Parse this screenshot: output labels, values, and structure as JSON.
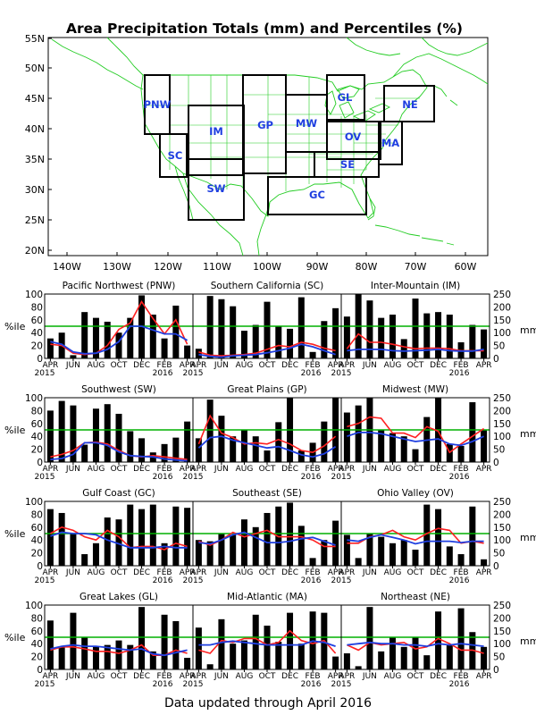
{
  "title": "Area Precipitation Totals (mm) and Percentiles (%)",
  "footer": "Data updated through April 2016",
  "colors": {
    "bars": "#000000",
    "percentile_line": "#ff2020",
    "mm_line": "#1f3fe0",
    "threshold_line": "#00b000",
    "map_lines": "#22cc22",
    "region_labels": "#1f3fe0"
  },
  "map": {
    "lat_labels": [
      "55N",
      "50N",
      "45N",
      "40N",
      "35N",
      "30N",
      "25N",
      "20N"
    ],
    "lon_labels": [
      "140W",
      "130W",
      "120W",
      "110W",
      "100W",
      "90W",
      "80W",
      "70W",
      "60W"
    ],
    "region_labels": [
      "PNW",
      "SC",
      "IM",
      "SW",
      "GP",
      "MW",
      "GC",
      "GL",
      "OV",
      "SE",
      "MA",
      "NE"
    ]
  },
  "axes": {
    "percentile_label": "%ile",
    "mm_label": "mm",
    "percentile_ticks": [
      "0",
      "20",
      "40",
      "60",
      "80",
      "100"
    ],
    "mm_ticks": [
      "0",
      "50",
      "100",
      "150",
      "200",
      "250"
    ],
    "month_ticks": [
      "APR",
      "JUN",
      "AUG",
      "OCT",
      "DEC",
      "FEB",
      "APR"
    ],
    "year_left": "2015",
    "year_right": "2016"
  },
  "chart_data": {
    "type": "bar",
    "x": [
      "2015-04",
      "2015-05",
      "2015-06",
      "2015-07",
      "2015-08",
      "2015-09",
      "2015-10",
      "2015-11",
      "2015-12",
      "2016-01",
      "2016-02",
      "2016-03",
      "2016-04"
    ],
    "y_left_range": [
      0,
      100
    ],
    "y_right_range": [
      0,
      250
    ],
    "threshold_percentile": 50,
    "series_meaning": "bars = monthly percentile (%ile), red line = 3-month percentile, blue line = monthly total (mm)",
    "panels": [
      {
        "title": "Pacific Northwest (PNW)",
        "percentile": [
          31,
          40,
          5,
          72,
          63,
          57,
          40,
          63,
          98,
          68,
          31,
          82,
          20
        ],
        "pct3": [
          22,
          20,
          8,
          6,
          8,
          20,
          45,
          55,
          88,
          62,
          38,
          60,
          22
        ],
        "mm": [
          65,
          55,
          25,
          18,
          20,
          35,
          65,
          125,
          125,
          110,
          95,
          95,
          70
        ]
      },
      {
        "title": "Southern California (SC)",
        "percentile": [
          15,
          97,
          92,
          81,
          43,
          52,
          88,
          50,
          46,
          95,
          10,
          58,
          78
        ],
        "pct3": [
          10,
          5,
          4,
          5,
          6,
          8,
          14,
          20,
          18,
          25,
          22,
          16,
          12
        ],
        "mm": [
          15,
          8,
          5,
          10,
          12,
          15,
          22,
          30,
          40,
          55,
          45,
          30,
          15
        ]
      },
      {
        "title": "Inter-Mountain (IM)",
        "percentile": [
          65,
          100,
          90,
          63,
          68,
          30,
          93,
          70,
          72,
          68,
          25,
          52,
          45
        ],
        "pct3": [
          15,
          38,
          25,
          25,
          22,
          18,
          15,
          16,
          16,
          15,
          12,
          12,
          12
        ],
        "mm": [
          30,
          35,
          35,
          35,
          30,
          28,
          30,
          32,
          35,
          30,
          28,
          28,
          35
        ]
      },
      {
        "title": "Southwest (SW)",
        "percentile": [
          80,
          95,
          88,
          27,
          83,
          90,
          75,
          48,
          37,
          15,
          28,
          38,
          63
        ],
        "pct3": [
          8,
          12,
          18,
          30,
          31,
          28,
          18,
          10,
          8,
          10,
          8,
          6,
          4
        ],
        "mm": [
          10,
          14,
          30,
          75,
          75,
          65,
          40,
          25,
          22,
          20,
          12,
          8,
          5
        ]
      },
      {
        "title": "Great Plains (GP)",
        "percentile": [
          37,
          97,
          72,
          40,
          50,
          40,
          18,
          62,
          100,
          18,
          30,
          63,
          100
        ],
        "pct3": [
          28,
          72,
          45,
          38,
          28,
          30,
          28,
          35,
          28,
          18,
          15,
          25,
          40
        ],
        "mm": [
          55,
          95,
          100,
          85,
          75,
          65,
          55,
          60,
          45,
          28,
          20,
          32,
          60
        ]
      },
      {
        "title": "Midwest (MW)",
        "percentile": [
          77,
          88,
          100,
          50,
          45,
          40,
          20,
          70,
          100,
          28,
          25,
          93,
          50
        ],
        "pct3": [
          55,
          60,
          70,
          68,
          45,
          45,
          38,
          55,
          48,
          15,
          28,
          40,
          52
        ],
        "mm": [
          100,
          115,
          115,
          110,
          100,
          90,
          80,
          85,
          90,
          70,
          65,
          80,
          100
        ]
      },
      {
        "title": "Gulf Coast (GC)",
        "percentile": [
          88,
          82,
          50,
          18,
          35,
          75,
          72,
          95,
          88,
          95,
          35,
          92,
          90
        ],
        "pct3": [
          50,
          60,
          55,
          45,
          40,
          55,
          45,
          28,
          30,
          30,
          25,
          35,
          30
        ],
        "mm": [
          115,
          130,
          125,
          125,
          120,
          100,
          85,
          70,
          70,
          70,
          75,
          70,
          70
        ]
      },
      {
        "title": "Southeast (SE)",
        "percentile": [
          40,
          38,
          50,
          48,
          72,
          60,
          82,
          92,
          98,
          62,
          12,
          40,
          70
        ],
        "pct3": [
          38,
          32,
          40,
          52,
          45,
          50,
          55,
          45,
          45,
          45,
          40,
          30,
          30
        ],
        "mm": [
          90,
          85,
          100,
          120,
          130,
          110,
          90,
          90,
          95,
          105,
          110,
          95,
          80
        ]
      },
      {
        "title": "Ohio Valley (OV)",
        "percentile": [
          48,
          12,
          50,
          45,
          35,
          40,
          25,
          95,
          88,
          30,
          18,
          92,
          10
        ],
        "pct3": [
          35,
          35,
          45,
          48,
          55,
          45,
          40,
          50,
          58,
          55,
          35,
          38,
          35
        ],
        "mm": [
          100,
          95,
          110,
          120,
          110,
          100,
          85,
          95,
          95,
          95,
          90,
          95,
          95
        ]
      },
      {
        "title": "Great Lakes (GL)",
        "percentile": [
          76,
          35,
          88,
          50,
          35,
          38,
          45,
          38,
          97,
          28,
          85,
          75,
          18
        ],
        "pct3": [
          30,
          35,
          35,
          32,
          28,
          28,
          25,
          30,
          38,
          22,
          22,
          30,
          25
        ],
        "mm": [
          80,
          90,
          95,
          90,
          90,
          85,
          80,
          75,
          80,
          60,
          55,
          65,
          75
        ]
      },
      {
        "title": "Mid-Atlantic (MA)",
        "percentile": [
          65,
          8,
          78,
          40,
          45,
          85,
          68,
          43,
          88,
          40,
          90,
          88,
          20
        ],
        "pct3": [
          30,
          25,
          45,
          42,
          48,
          48,
          38,
          42,
          60,
          45,
          40,
          45,
          25
        ],
        "mm": [
          95,
          95,
          105,
          110,
          105,
          100,
          95,
          95,
          95,
          95,
          110,
          105,
          90
        ]
      },
      {
        "title": "Northeast (NE)",
        "percentile": [
          25,
          5,
          97,
          28,
          50,
          35,
          50,
          22,
          90,
          38,
          95,
          58,
          35
        ],
        "pct3": [
          38,
          30,
          42,
          38,
          40,
          42,
          32,
          35,
          48,
          40,
          30,
          30,
          25
        ],
        "mm": [
          95,
          100,
          105,
          100,
          100,
          95,
          95,
          90,
          100,
          95,
          100,
          95,
          90
        ]
      }
    ]
  }
}
